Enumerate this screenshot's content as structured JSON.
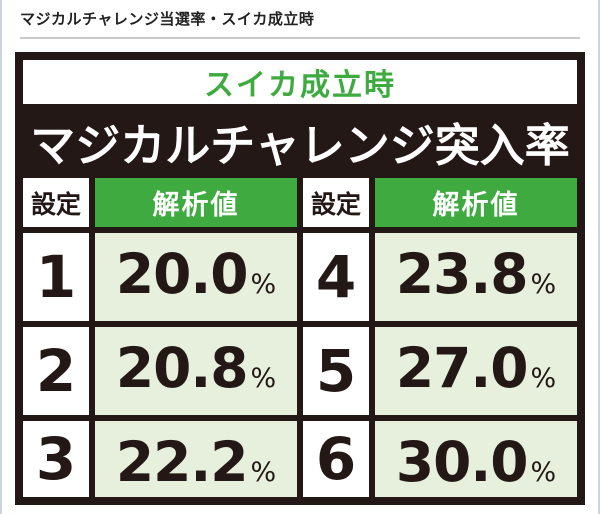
{
  "page": {
    "heading": "マジカルチャレンジ当選率・スイカ成立時"
  },
  "board": {
    "subtitle": "スイカ成立時",
    "title": "マジカルチャレンジ突入率",
    "col_headers": [
      "設定",
      "解析値",
      "設定",
      "解析値"
    ],
    "rows": [
      {
        "cells": [
          {
            "setting": "1",
            "value": "20.0",
            "unit": "%"
          },
          {
            "setting": "4",
            "value": "23.8",
            "unit": "%"
          }
        ]
      },
      {
        "cells": [
          {
            "setting": "2",
            "value": "20.8",
            "unit": "%"
          },
          {
            "setting": "5",
            "value": "27.0",
            "unit": "%"
          }
        ]
      },
      {
        "cells": [
          {
            "setting": "3",
            "value": "22.2",
            "unit": "%"
          },
          {
            "setting": "6",
            "value": "30.0",
            "unit": "%"
          }
        ]
      }
    ],
    "colors": {
      "frame_dark": "#231815",
      "accent_green": "#3eaa40",
      "value_cell_light_green": "#e6f0dd",
      "page_edge_line": "#ccd6e2",
      "heading_rule_gray": "#c9c9c9"
    }
  }
}
